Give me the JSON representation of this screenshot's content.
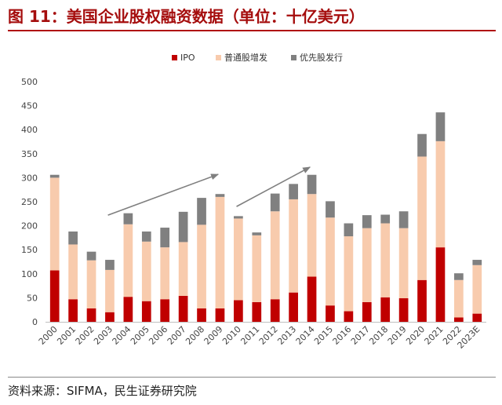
{
  "figure_title": "图 11：美国企业股权融资数据（单位：十亿美元）",
  "source": "资料来源：SIFMA，民生证券研究院",
  "chart_data": {
    "type": "bar",
    "stacked": true,
    "categories": [
      "2000",
      "2001",
      "2002",
      "2003",
      "2004",
      "2005",
      "2006",
      "2007",
      "2008",
      "2009",
      "2010",
      "2011",
      "2012",
      "2013",
      "2014",
      "2015",
      "2016",
      "2017",
      "2018",
      "2019",
      "2020",
      "2021",
      "2022",
      "2023E"
    ],
    "series": [
      {
        "name": "IPO",
        "color": "#c00000",
        "values": [
          107,
          47,
          28,
          20,
          52,
          43,
          47,
          54,
          28,
          28,
          45,
          41,
          47,
          61,
          94,
          34,
          22,
          41,
          51,
          49,
          87,
          155,
          9,
          17
        ]
      },
      {
        "name": "普通股增发",
        "color": "#f8cbad",
        "values": [
          193,
          114,
          100,
          88,
          151,
          124,
          108,
          112,
          174,
          232,
          170,
          139,
          183,
          194,
          172,
          183,
          156,
          154,
          154,
          146,
          257,
          221,
          78,
          101
        ]
      },
      {
        "name": "优先股发行",
        "color": "#808080",
        "values": [
          6,
          27,
          18,
          21,
          23,
          21,
          41,
          63,
          56,
          6,
          5,
          6,
          37,
          32,
          40,
          34,
          27,
          27,
          18,
          35,
          47,
          60,
          14,
          11
        ]
      }
    ],
    "ylim": [
      0,
      500
    ],
    "yticks": [
      0,
      50,
      100,
      150,
      200,
      250,
      300,
      350,
      400,
      450,
      500
    ],
    "legend_position": "top-center",
    "grid": false,
    "annotations": [
      {
        "type": "arrow",
        "from": {
          "x": "2003",
          "y": 222
        },
        "to": {
          "x": "2009",
          "y": 307
        }
      },
      {
        "type": "arrow",
        "from": {
          "x": "2010",
          "y": 240
        },
        "to": {
          "x": "2014",
          "y": 322
        }
      }
    ]
  }
}
